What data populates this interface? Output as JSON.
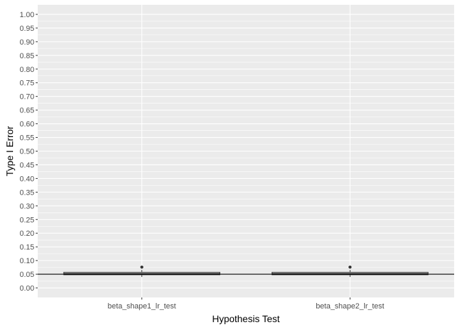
{
  "chart_data": {
    "type": "boxplot",
    "xlabel": "Hypothesis Test",
    "ylabel": "Type I Error",
    "categories": [
      "beta_shape1_lr_test",
      "beta_shape2_lr_test"
    ],
    "ylim": [
      -0.035,
      1.035
    ],
    "y_ticks": [
      0.0,
      0.05,
      0.1,
      0.15,
      0.2,
      0.25,
      0.3,
      0.35,
      0.4,
      0.45,
      0.5,
      0.55,
      0.6,
      0.65,
      0.7,
      0.75,
      0.8,
      0.85,
      0.9,
      0.95,
      1.0
    ],
    "y_tick_labels": [
      "0.00",
      "0.05",
      "0.10",
      "0.15",
      "0.20",
      "0.25",
      "0.30",
      "0.35",
      "0.40",
      "0.45",
      "0.50",
      "0.55",
      "0.60",
      "0.65",
      "0.70",
      "0.75",
      "0.80",
      "0.85",
      "0.90",
      "0.95",
      "1.00"
    ],
    "boxes": [
      {
        "category": "beta_shape1_lr_test",
        "whisker_low": 0.04,
        "q1": 0.048,
        "median": 0.052,
        "q3": 0.057,
        "whisker_high": 0.066,
        "outliers": [
          0.076
        ]
      },
      {
        "category": "beta_shape2_lr_test",
        "whisker_low": 0.04,
        "q1": 0.048,
        "median": 0.052,
        "q3": 0.057,
        "whisker_high": 0.066,
        "outliers": [
          0.076
        ]
      }
    ],
    "reference_line": 0.05,
    "grid": true,
    "colors": {
      "panel": "#ebebeb",
      "grid": "#ffffff",
      "box_fill": "#ffffff",
      "box_line": "#333333",
      "reference": "#000000"
    }
  }
}
